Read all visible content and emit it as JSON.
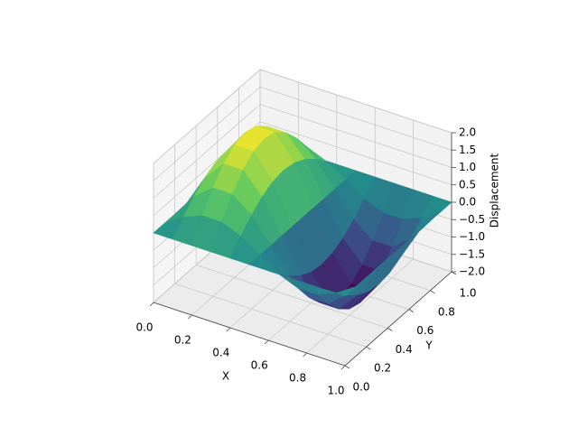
{
  "chart_data": {
    "type": "surface",
    "x": [
      0,
      0.1,
      0.2,
      0.3,
      0.4,
      0.5,
      0.6,
      0.7,
      0.8,
      0.9,
      1
    ],
    "y": [
      0,
      0.1,
      0.2,
      0.3,
      0.4,
      0.5,
      0.6,
      0.7,
      0.8,
      0.9,
      1
    ],
    "z": [
      [
        0,
        0,
        0,
        0,
        0,
        0,
        0,
        0,
        0,
        0,
        0
      ],
      [
        0,
        0.363,
        0.588,
        0.588,
        0.363,
        0,
        -0.363,
        -0.588,
        -0.588,
        -0.363,
        0
      ],
      [
        0,
        0.691,
        1.118,
        1.118,
        0.691,
        0,
        -0.691,
        -1.118,
        -1.118,
        -0.691,
        0
      ],
      [
        0,
        0.951,
        1.539,
        1.539,
        0.951,
        0,
        -0.951,
        -1.539,
        -1.539,
        -0.951,
        0
      ],
      [
        0,
        1.118,
        1.809,
        1.809,
        1.118,
        0,
        -1.118,
        -1.809,
        -1.809,
        -1.118,
        0
      ],
      [
        0,
        1.176,
        1.902,
        1.902,
        1.176,
        0,
        -1.176,
        -1.902,
        -1.902,
        -1.176,
        0
      ],
      [
        0,
        1.118,
        1.809,
        1.809,
        1.118,
        0,
        -1.118,
        -1.809,
        -1.809,
        -1.118,
        0
      ],
      [
        0,
        0.951,
        1.539,
        1.539,
        0.951,
        0,
        -0.951,
        -1.539,
        -1.539,
        -0.951,
        0
      ],
      [
        0,
        0.691,
        1.118,
        1.118,
        0.691,
        0,
        -0.691,
        -1.118,
        -1.118,
        -0.691,
        0
      ],
      [
        0,
        0.363,
        0.588,
        0.588,
        0.363,
        0,
        -0.363,
        -0.588,
        -0.588,
        -0.363,
        0
      ],
      [
        0,
        0,
        0,
        0,
        0,
        0,
        0,
        0,
        0,
        0,
        0
      ]
    ],
    "colormap": "viridis",
    "xlabel": "X",
    "ylabel": "Y",
    "zlabel": "Displacement",
    "xlim": [
      0,
      1
    ],
    "ylim": [
      0,
      1
    ],
    "zlim": [
      -2,
      2
    ],
    "xticks": [
      {
        "value": 0,
        "label": "0.0"
      },
      {
        "value": 0.2,
        "label": "0.2"
      },
      {
        "value": 0.4,
        "label": "0.4"
      },
      {
        "value": 0.6,
        "label": "0.6"
      },
      {
        "value": 0.8,
        "label": "0.8"
      },
      {
        "value": 1,
        "label": "1.0"
      }
    ],
    "yticks": [
      {
        "value": 0,
        "label": "0.0"
      },
      {
        "value": 0.2,
        "label": "0.2"
      },
      {
        "value": 0.4,
        "label": "0.4"
      },
      {
        "value": 0.6,
        "label": "0.6"
      },
      {
        "value": 0.8,
        "label": "0.8"
      },
      {
        "value": 1,
        "label": "1.0"
      }
    ],
    "zticks": [
      {
        "value": -2,
        "label": "−2.0"
      },
      {
        "value": -1.5,
        "label": "−1.5"
      },
      {
        "value": -1,
        "label": "−1.0"
      },
      {
        "value": -0.5,
        "label": "−0.5"
      },
      {
        "value": 0,
        "label": "0.0"
      },
      {
        "value": 0.5,
        "label": "0.5"
      },
      {
        "value": 1,
        "label": "1.0"
      },
      {
        "value": 1.5,
        "label": "1.5"
      },
      {
        "value": 2,
        "label": "2.0"
      }
    ],
    "grid": true
  }
}
